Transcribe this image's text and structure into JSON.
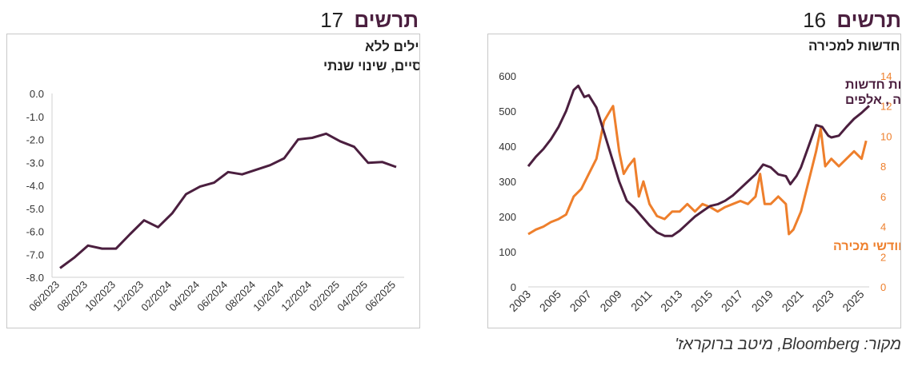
{
  "left_panel": {
    "header_word": "תרשים",
    "header_number": "17"
  },
  "right_panel": {
    "header_word": "תרשים",
    "header_number": "16"
  },
  "source_note": "מקור: Bloomberg, מיטב ברוקראז'",
  "chart_data": [
    {
      "type": "line",
      "title_line1": "ארה\"ב: מדד אינדיקאטורים מובילים ללא",
      "title_line2": "משתנים פיננסיים, שינוי שנתי",
      "ylim": [
        -8,
        0
      ],
      "ytick_labels": [
        "0.0",
        "-1.0",
        "-2.0",
        "-3.0",
        "-4.0",
        "-5.0",
        "-6.0",
        "-7.0",
        "-8.0"
      ],
      "xtick_labels": [
        "06/2023",
        "08/2023",
        "10/2023",
        "12/2023",
        "02/2024",
        "04/2024",
        "06/2024",
        "08/2024",
        "10/2024",
        "12/2024",
        "02/2025",
        "04/2025",
        "06/2025"
      ],
      "x": [
        "06/2023",
        "07/2023",
        "08/2023",
        "09/2023",
        "10/2023",
        "11/2023",
        "12/2023",
        "01/2024",
        "02/2024",
        "03/2024",
        "04/2024",
        "05/2024",
        "06/2024",
        "07/2024",
        "08/2024",
        "09/2024",
        "10/2024",
        "11/2024",
        "12/2024",
        "01/2025",
        "02/2025",
        "03/2025",
        "04/2025",
        "05/2025",
        "06/2025"
      ],
      "series": [
        {
          "color": "#4b1f3f",
          "values": [
            -7.6,
            -7.15,
            -6.62,
            -6.75,
            -6.75,
            -6.12,
            -5.52,
            -5.82,
            -5.22,
            -4.38,
            -4.05,
            -3.88,
            -3.42,
            -3.52,
            -3.32,
            -3.12,
            -2.82,
            -2.0,
            -1.93,
            -1.75,
            -2.08,
            -2.32,
            -3.02,
            -2.98,
            -3.2
          ]
        }
      ],
      "grid": false
    },
    {
      "type": "line",
      "title": "ארה\"ב - דירות חדשות למכירה",
      "ylim_left": [
        0,
        600
      ],
      "ylim_right": [
        0,
        14
      ],
      "ytick_labels_left": [
        "0",
        "100",
        "200",
        "300",
        "400",
        "500",
        "600"
      ],
      "ytick_labels_right": [
        "0",
        "2",
        "4",
        "6",
        "8",
        "10",
        "12",
        "14"
      ],
      "xtick_labels": [
        "2003",
        "2005",
        "2007",
        "2009",
        "2011",
        "2013",
        "2015",
        "2017",
        "2019",
        "2021",
        "2023",
        "2025"
      ],
      "series": [
        {
          "name_line1": "דירות חדשות",
          "name_line2": "למכירה , אלפים",
          "axis": "left",
          "color": "#4b1f3f",
          "x": [
            2003.0,
            2003.5,
            2004.0,
            2004.5,
            2005.0,
            2005.5,
            2006.0,
            2006.3,
            2006.7,
            2007.0,
            2007.5,
            2008.0,
            2008.5,
            2009.0,
            2009.5,
            2010.0,
            2010.5,
            2011.0,
            2011.5,
            2012.0,
            2012.5,
            2013.0,
            2013.5,
            2014.0,
            2014.5,
            2015.0,
            2015.5,
            2016.0,
            2016.5,
            2017.0,
            2017.5,
            2018.0,
            2018.5,
            2019.0,
            2019.5,
            2020.0,
            2020.3,
            2020.7,
            2021.0,
            2021.5,
            2022.0,
            2022.4,
            2022.8,
            2023.0,
            2023.5,
            2024.0,
            2024.5,
            2025.0,
            2025.5
          ],
          "values": [
            343,
            370,
            392,
            420,
            455,
            500,
            560,
            572,
            540,
            545,
            510,
            440,
            370,
            300,
            245,
            225,
            200,
            175,
            155,
            145,
            145,
            160,
            180,
            200,
            215,
            230,
            235,
            245,
            260,
            280,
            300,
            320,
            348,
            340,
            320,
            315,
            292,
            315,
            340,
            400,
            460,
            455,
            430,
            425,
            430,
            455,
            478,
            495,
            515
          ]
        },
        {
          "name": "חודשי מכירה",
          "axis": "right",
          "color": "#ee7f2c",
          "x": [
            2003.0,
            2003.5,
            2004.0,
            2004.5,
            2005.0,
            2005.5,
            2006.0,
            2006.5,
            2007.0,
            2007.5,
            2007.8,
            2008.0,
            2008.3,
            2008.6,
            2008.8,
            2009.0,
            2009.3,
            2009.6,
            2010.0,
            2010.3,
            2010.6,
            2011.0,
            2011.5,
            2012.0,
            2012.5,
            2013.0,
            2013.5,
            2014.0,
            2014.5,
            2015.0,
            2015.5,
            2016.0,
            2016.5,
            2017.0,
            2017.5,
            2018.0,
            2018.3,
            2018.6,
            2019.0,
            2019.5,
            2020.0,
            2020.2,
            2020.5,
            2021.0,
            2021.5,
            2022.0,
            2022.3,
            2022.6,
            2023.0,
            2023.5,
            2024.0,
            2024.5,
            2025.0,
            2025.3
          ],
          "values": [
            3.5,
            3.8,
            4.0,
            4.3,
            4.5,
            4.8,
            6.0,
            6.5,
            7.5,
            8.5,
            10.0,
            11.0,
            11.5,
            12.0,
            10.5,
            9.0,
            7.5,
            8.0,
            8.5,
            6.0,
            7.0,
            5.5,
            4.7,
            4.5,
            5.0,
            5.0,
            5.5,
            5.0,
            5.5,
            5.3,
            5.0,
            5.3,
            5.5,
            5.7,
            5.5,
            6.0,
            7.5,
            5.5,
            5.5,
            6.0,
            5.5,
            3.5,
            3.8,
            5.0,
            7.0,
            9.0,
            10.5,
            8.0,
            8.5,
            8.0,
            8.5,
            9.0,
            8.5,
            9.7
          ]
        }
      ],
      "grid": false
    }
  ]
}
